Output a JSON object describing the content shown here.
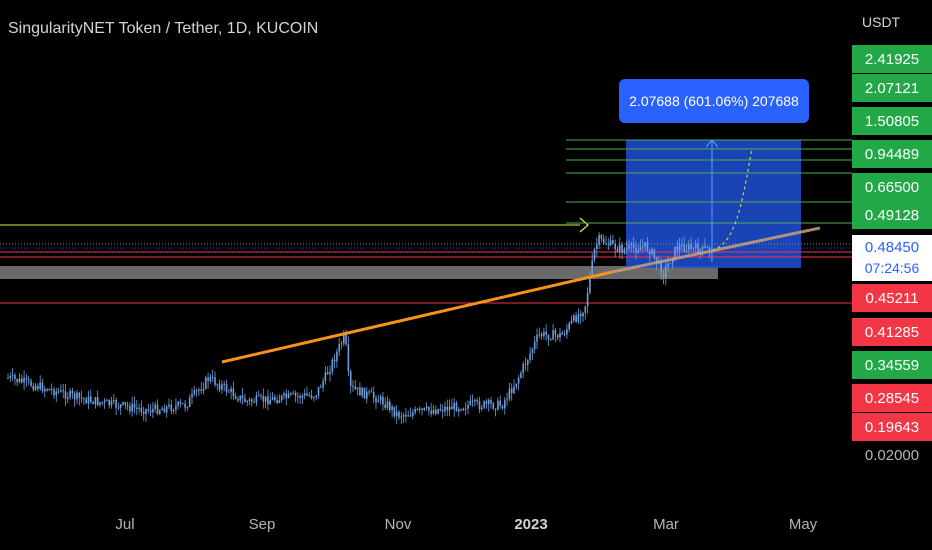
{
  "header": {
    "title": "SingularityNET Token / Tether, 1D, KUCOIN",
    "currency": "USDT"
  },
  "measure": {
    "label": "2.07688 (601.06%) 207688"
  },
  "price_scale": {
    "tags": [
      {
        "label": "2.41925",
        "style": "green"
      },
      {
        "label": "2.07121",
        "style": "green"
      },
      {
        "label": "1.50805",
        "style": "green"
      },
      {
        "label": "0.94489",
        "style": "green"
      },
      {
        "label": "0.66500",
        "style": "green"
      },
      {
        "label": "0.49128",
        "style": "green"
      },
      {
        "label": "0.45211",
        "style": "red"
      },
      {
        "label": "0.41285",
        "style": "red"
      },
      {
        "label": "0.34559",
        "style": "green"
      },
      {
        "label": "0.28545",
        "style": "red"
      },
      {
        "label": "0.19643",
        "style": "red"
      },
      {
        "label": "0.02000",
        "style": "plain"
      }
    ],
    "current_price": "0.48450",
    "countdown": "07:24:56"
  },
  "colors": {
    "background": "#000000",
    "candle": "#6fa0dd",
    "trendline": "#f7931a",
    "yellow_level": "#e8e84a",
    "red_level": "#f23645",
    "green_level": "#4caf50",
    "target_zone": "#1f4fd6",
    "gray_zone": "#8c8c8c"
  },
  "chart_data": {
    "type": "candlestick",
    "title": "SingularityNET Token / Tether, 1D, KUCOIN",
    "x_ticks": [
      "Jul",
      "Sep",
      "Nov",
      "2023",
      "Mar",
      "May"
    ],
    "x": [
      "2022-05-25",
      "2022-06-10",
      "2022-06-25",
      "2022-07-10",
      "2022-07-25",
      "2022-08-10",
      "2022-08-20",
      "2022-09-05",
      "2022-09-20",
      "2022-10-05",
      "2022-10-18",
      "2022-10-20",
      "2022-11-01",
      "2022-11-10",
      "2022-11-25",
      "2022-12-10",
      "2022-12-25",
      "2023-01-01",
      "2023-01-10",
      "2023-01-20",
      "2023-01-30",
      "2023-02-05",
      "2023-02-15",
      "2023-02-25",
      "2023-03-05",
      "2023-03-12",
      "2023-03-20",
      "2023-03-26"
    ],
    "close": [
      0.3,
      0.27,
      0.24,
      0.22,
      0.21,
      0.22,
      0.3,
      0.23,
      0.24,
      0.25,
      0.4,
      0.27,
      0.24,
      0.2,
      0.21,
      0.22,
      0.22,
      0.3,
      0.4,
      0.4,
      0.45,
      0.5,
      0.485,
      0.49,
      0.47,
      0.49,
      0.485,
      0.4845
    ],
    "y_unit": "USDT",
    "current_price": 0.4845,
    "horizontal_levels": {
      "green": [
        2.07121,
        1.50805,
        0.94489,
        0.665,
        0.49128
      ],
      "red": [
        0.45211,
        0.41285
      ]
    }
  }
}
